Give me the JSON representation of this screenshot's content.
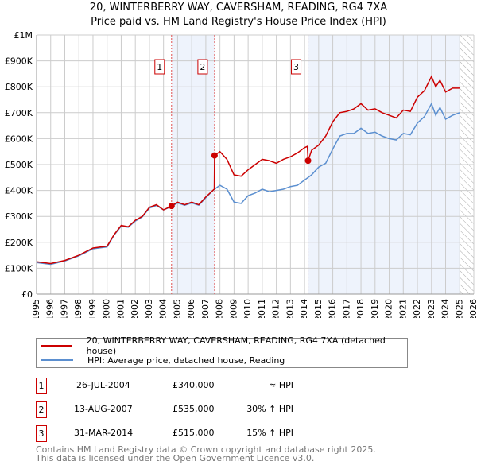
{
  "chart_data": {
    "type": "line",
    "title": "20, WINTERBERRY WAY, CAVERSHAM, READING, RG4 7XA",
    "subtitle": "Price paid vs. HM Land Registry's House Price Index (HPI)",
    "xlim": [
      1995,
      2026
    ],
    "ylim": [
      0,
      1000000
    ],
    "x_ticks": [
      "1995",
      "1996",
      "1997",
      "1998",
      "1999",
      "2000",
      "2001",
      "2002",
      "2003",
      "2004",
      "2005",
      "2006",
      "2007",
      "2008",
      "2009",
      "2010",
      "2011",
      "2012",
      "2013",
      "2014",
      "2015",
      "2016",
      "2017",
      "2018",
      "2019",
      "2020",
      "2021",
      "2022",
      "2023",
      "2024",
      "2025",
      "2026"
    ],
    "y_ticks": [
      {
        "v": 0,
        "l": "£0"
      },
      {
        "v": 100000,
        "l": "£100K"
      },
      {
        "v": 200000,
        "l": "£200K"
      },
      {
        "v": 300000,
        "l": "£300K"
      },
      {
        "v": 400000,
        "l": "£400K"
      },
      {
        "v": 500000,
        "l": "£500K"
      },
      {
        "v": 600000,
        "l": "£600K"
      },
      {
        "v": 700000,
        "l": "£700K"
      },
      {
        "v": 800000,
        "l": "£800K"
      },
      {
        "v": 900000,
        "l": "£900K"
      },
      {
        "v": 1000000,
        "l": "£1M"
      }
    ],
    "series": [
      {
        "name": "20, WINTERBERRY WAY, CAVERSHAM, READING, RG4 7XA (detached house)",
        "color": "#cc0000",
        "x": [
          1995,
          1996,
          1997,
          1998,
          1999,
          2000,
          2000.5,
          2001,
          2001.5,
          2002,
          2002.5,
          2003,
          2003.5,
          2004,
          2004.57,
          2005,
          2005.5,
          2006,
          2006.5,
          2007,
          2007.5,
          2007.6,
          2007.62,
          2008,
          2008.5,
          2009,
          2009.5,
          2010,
          2010.5,
          2011,
          2011.5,
          2012,
          2012.5,
          2013,
          2013.5,
          2014,
          2014.2,
          2014.25,
          2014.5,
          2015,
          2015.5,
          2016,
          2016.5,
          2017,
          2017.5,
          2018,
          2018.5,
          2019,
          2019.5,
          2020,
          2020.5,
          2021,
          2021.5,
          2022,
          2022.5,
          2023,
          2023.3,
          2023.6,
          2024,
          2024.5,
          2025
        ],
        "y": [
          125000,
          118000,
          130000,
          150000,
          178000,
          185000,
          230000,
          265000,
          260000,
          285000,
          300000,
          335000,
          345000,
          325000,
          340000,
          355000,
          345000,
          355000,
          345000,
          375000,
          400000,
          405000,
          535000,
          550000,
          520000,
          460000,
          455000,
          480000,
          500000,
          520000,
          515000,
          505000,
          520000,
          530000,
          545000,
          565000,
          570000,
          515000,
          555000,
          575000,
          610000,
          665000,
          700000,
          705000,
          715000,
          735000,
          710000,
          715000,
          700000,
          690000,
          680000,
          710000,
          705000,
          760000,
          785000,
          840000,
          800000,
          825000,
          780000,
          795000,
          795000
        ]
      },
      {
        "name": "HPI: Average price, detached house, Reading",
        "color": "#5b8fd0",
        "x": [
          1995,
          1996,
          1997,
          1998,
          1999,
          2000,
          2000.5,
          2001,
          2001.5,
          2002,
          2002.5,
          2003,
          2003.5,
          2004,
          2004.57,
          2005,
          2005.5,
          2006,
          2006.5,
          2007,
          2007.5,
          2008,
          2008.5,
          2009,
          2009.5,
          2010,
          2010.5,
          2011,
          2011.5,
          2012,
          2012.5,
          2013,
          2013.5,
          2014,
          2014.5,
          2015,
          2015.5,
          2016,
          2016.5,
          2017,
          2017.5,
          2018,
          2018.5,
          2019,
          2019.5,
          2020,
          2020.5,
          2021,
          2021.5,
          2022,
          2022.5,
          2023,
          2023.3,
          2023.6,
          2024,
          2024.5,
          2025
        ],
        "y": [
          122000,
          115000,
          128000,
          148000,
          175000,
          182000,
          228000,
          262000,
          258000,
          282000,
          298000,
          332000,
          342000,
          325000,
          338000,
          352000,
          343000,
          352000,
          343000,
          372000,
          400000,
          420000,
          405000,
          355000,
          350000,
          380000,
          390000,
          405000,
          395000,
          400000,
          405000,
          415000,
          420000,
          440000,
          460000,
          490000,
          505000,
          560000,
          610000,
          620000,
          620000,
          640000,
          620000,
          625000,
          610000,
          600000,
          595000,
          620000,
          615000,
          660000,
          685000,
          735000,
          690000,
          720000,
          675000,
          690000,
          700000
        ]
      }
    ],
    "sales": [
      {
        "n": "1",
        "x": 2004.57,
        "y": 340000,
        "date": "26-JUL-2004",
        "price": "£340,000",
        "hpi": "≈ HPI"
      },
      {
        "n": "2",
        "x": 2007.62,
        "y": 535000,
        "date": "13-AUG-2007",
        "price": "£535,000",
        "hpi": "30% ↑ HPI"
      },
      {
        "n": "3",
        "x": 2014.25,
        "y": 515000,
        "date": "31-MAR-2014",
        "price": "£515,000",
        "hpi": "15% ↑ HPI"
      }
    ],
    "shaded_ranges": [
      [
        2004.57,
        2007.62
      ],
      [
        2014.25,
        2025
      ]
    ],
    "forecast_hatch_from": 2025,
    "legend_placement": "bottom"
  },
  "footer": [
    "Contains HM Land Registry data © Crown copyright and database right 2025.",
    "This data is licensed under the Open Government Licence v3.0."
  ]
}
